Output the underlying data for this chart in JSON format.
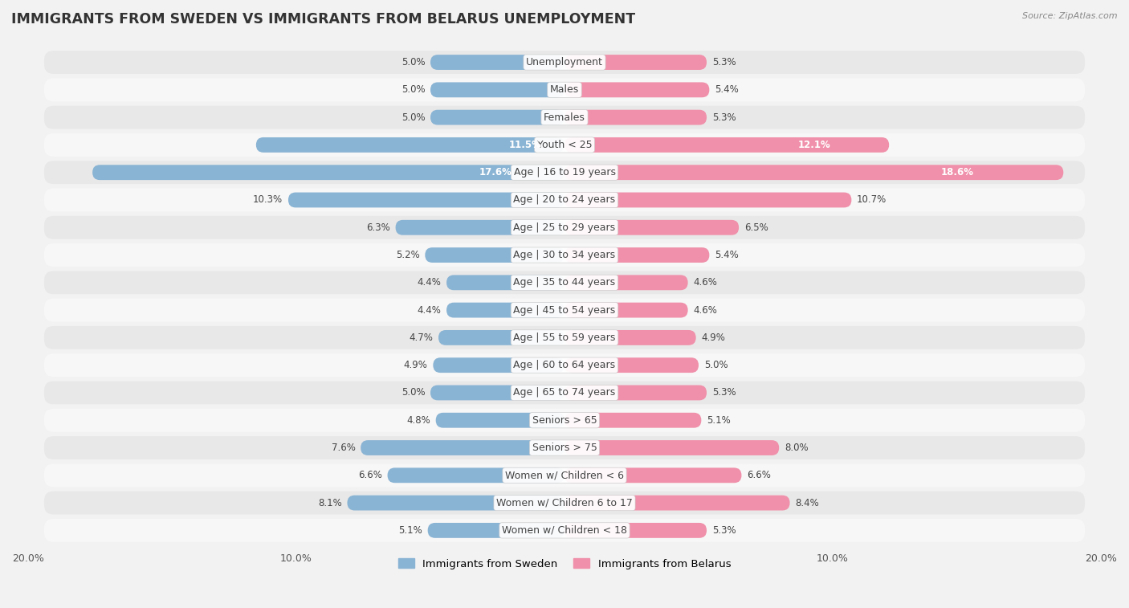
{
  "title": "IMMIGRANTS FROM SWEDEN VS IMMIGRANTS FROM BELARUS UNEMPLOYMENT",
  "source": "Source: ZipAtlas.com",
  "categories": [
    "Unemployment",
    "Males",
    "Females",
    "Youth < 25",
    "Age | 16 to 19 years",
    "Age | 20 to 24 years",
    "Age | 25 to 29 years",
    "Age | 30 to 34 years",
    "Age | 35 to 44 years",
    "Age | 45 to 54 years",
    "Age | 55 to 59 years",
    "Age | 60 to 64 years",
    "Age | 65 to 74 years",
    "Seniors > 65",
    "Seniors > 75",
    "Women w/ Children < 6",
    "Women w/ Children 6 to 17",
    "Women w/ Children < 18"
  ],
  "sweden_values": [
    5.0,
    5.0,
    5.0,
    11.5,
    17.6,
    10.3,
    6.3,
    5.2,
    4.4,
    4.4,
    4.7,
    4.9,
    5.0,
    4.8,
    7.6,
    6.6,
    8.1,
    5.1
  ],
  "belarus_values": [
    5.3,
    5.4,
    5.3,
    12.1,
    18.6,
    10.7,
    6.5,
    5.4,
    4.6,
    4.6,
    4.9,
    5.0,
    5.3,
    5.1,
    8.0,
    6.6,
    8.4,
    5.3
  ],
  "sweden_color": "#8ab4d4",
  "belarus_color": "#f090aa",
  "sweden_label": "Immigrants from Sweden",
  "belarus_label": "Immigrants from Belarus",
  "xlim": 20.0,
  "background_color": "#f2f2f2",
  "row_color_even": "#e8e8e8",
  "row_color_odd": "#f7f7f7",
  "bar_height": 0.55,
  "title_fontsize": 12.5,
  "label_fontsize": 9.0,
  "value_fontsize": 8.5,
  "large_value_threshold": 11.0
}
